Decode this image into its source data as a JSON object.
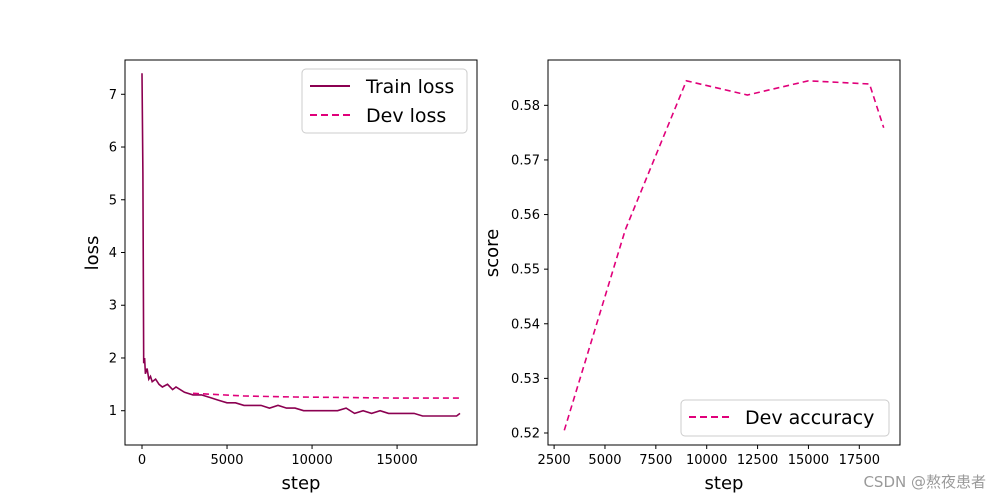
{
  "chart_data": [
    {
      "type": "line",
      "xlabel": "step",
      "ylabel": "loss",
      "xlim": [
        -1000,
        19700
      ],
      "ylim": [
        0.35,
        7.65
      ],
      "xticks": [
        0,
        5000,
        10000,
        15000
      ],
      "yticks": [
        1,
        2,
        3,
        4,
        5,
        6,
        7
      ],
      "legend_position": "top-right",
      "series": [
        {
          "name": "Train loss",
          "style": "solid",
          "color": "#8b0051",
          "x": [
            0,
            50,
            100,
            150,
            200,
            300,
            400,
            500,
            600,
            800,
            1000,
            1200,
            1500,
            1800,
            2000,
            2500,
            3000,
            3500,
            4000,
            4500,
            5000,
            5500,
            6000,
            6500,
            7000,
            7500,
            8000,
            8500,
            9000,
            9500,
            10000,
            10500,
            11000,
            11500,
            12000,
            12500,
            13000,
            13500,
            14000,
            14500,
            15000,
            15500,
            16000,
            16500,
            17000,
            17500,
            18000,
            18500,
            18700
          ],
          "y": [
            7.4,
            5.5,
            1.9,
            2.0,
            1.7,
            1.8,
            1.6,
            1.65,
            1.55,
            1.6,
            1.5,
            1.45,
            1.5,
            1.4,
            1.45,
            1.35,
            1.3,
            1.3,
            1.25,
            1.2,
            1.15,
            1.15,
            1.1,
            1.1,
            1.1,
            1.05,
            1.1,
            1.05,
            1.05,
            1.0,
            1.0,
            1.0,
            1.0,
            1.0,
            1.05,
            0.95,
            1.0,
            0.95,
            1.0,
            0.95,
            0.95,
            0.95,
            0.95,
            0.9,
            0.9,
            0.9,
            0.9,
            0.9,
            0.95
          ]
        },
        {
          "name": "Dev loss",
          "style": "dashed",
          "color": "#e0007a",
          "x": [
            3000,
            6000,
            9000,
            12000,
            15000,
            18000,
            18700
          ],
          "y": [
            1.33,
            1.28,
            1.26,
            1.25,
            1.24,
            1.24,
            1.24
          ]
        }
      ]
    },
    {
      "type": "line",
      "xlabel": "step",
      "ylabel": "score",
      "xlim": [
        2200,
        19500
      ],
      "ylim": [
        0.5178,
        0.5883
      ],
      "xticks": [
        2500,
        5000,
        7500,
        10000,
        12500,
        15000,
        17500
      ],
      "yticks": [
        0.52,
        0.53,
        0.54,
        0.55,
        0.56,
        0.57,
        0.58
      ],
      "legend_position": "lower-right",
      "series": [
        {
          "name": "Dev accuracy",
          "style": "dashed",
          "color": "#e0007a",
          "x": [
            3000,
            6000,
            9000,
            12000,
            15000,
            18000,
            18700
          ],
          "y": [
            0.5205,
            0.5572,
            0.5845,
            0.5819,
            0.5845,
            0.5839,
            0.5759
          ]
        }
      ]
    }
  ],
  "watermark": "CSDN @熬夜患者"
}
